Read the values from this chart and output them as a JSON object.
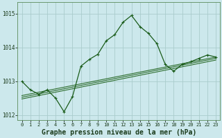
{
  "xlabel": "Graphe pression niveau de la mer (hPa)",
  "bg_color": "#cce8ec",
  "grid_color": "#aacccc",
  "line_color": "#1a5c1a",
  "line_color_trend": "#2e6e2e",
  "hours": [
    0,
    1,
    2,
    3,
    4,
    5,
    6,
    7,
    8,
    9,
    10,
    11,
    12,
    13,
    14,
    15,
    16,
    17,
    18,
    19,
    20,
    21,
    22,
    23
  ],
  "series1": [
    1013.0,
    1012.75,
    1012.62,
    1012.75,
    1012.5,
    1012.1,
    1012.55,
    1013.45,
    1013.65,
    1013.8,
    1014.2,
    1014.38,
    1014.75,
    1014.95,
    1014.62,
    1014.42,
    1014.12,
    1013.5,
    1013.3,
    1013.5,
    1013.58,
    1013.68,
    1013.78,
    1013.72
  ],
  "trend1_x": [
    0,
    23
  ],
  "trend1_y": [
    1012.58,
    1013.72
  ],
  "trend2_x": [
    0,
    23
  ],
  "trend2_y": [
    1012.53,
    1013.68
  ],
  "trend3_x": [
    0,
    23
  ],
  "trend3_y": [
    1012.48,
    1013.63
  ],
  "ylim": [
    1011.85,
    1015.35
  ],
  "yticks": [
    1012,
    1013,
    1014,
    1015
  ],
  "xlim": [
    -0.5,
    23.5
  ],
  "xtick_fontsize": 5.0,
  "ytick_fontsize": 5.5,
  "xlabel_fontsize": 7.0,
  "figsize": [
    3.2,
    2.0
  ],
  "dpi": 100
}
